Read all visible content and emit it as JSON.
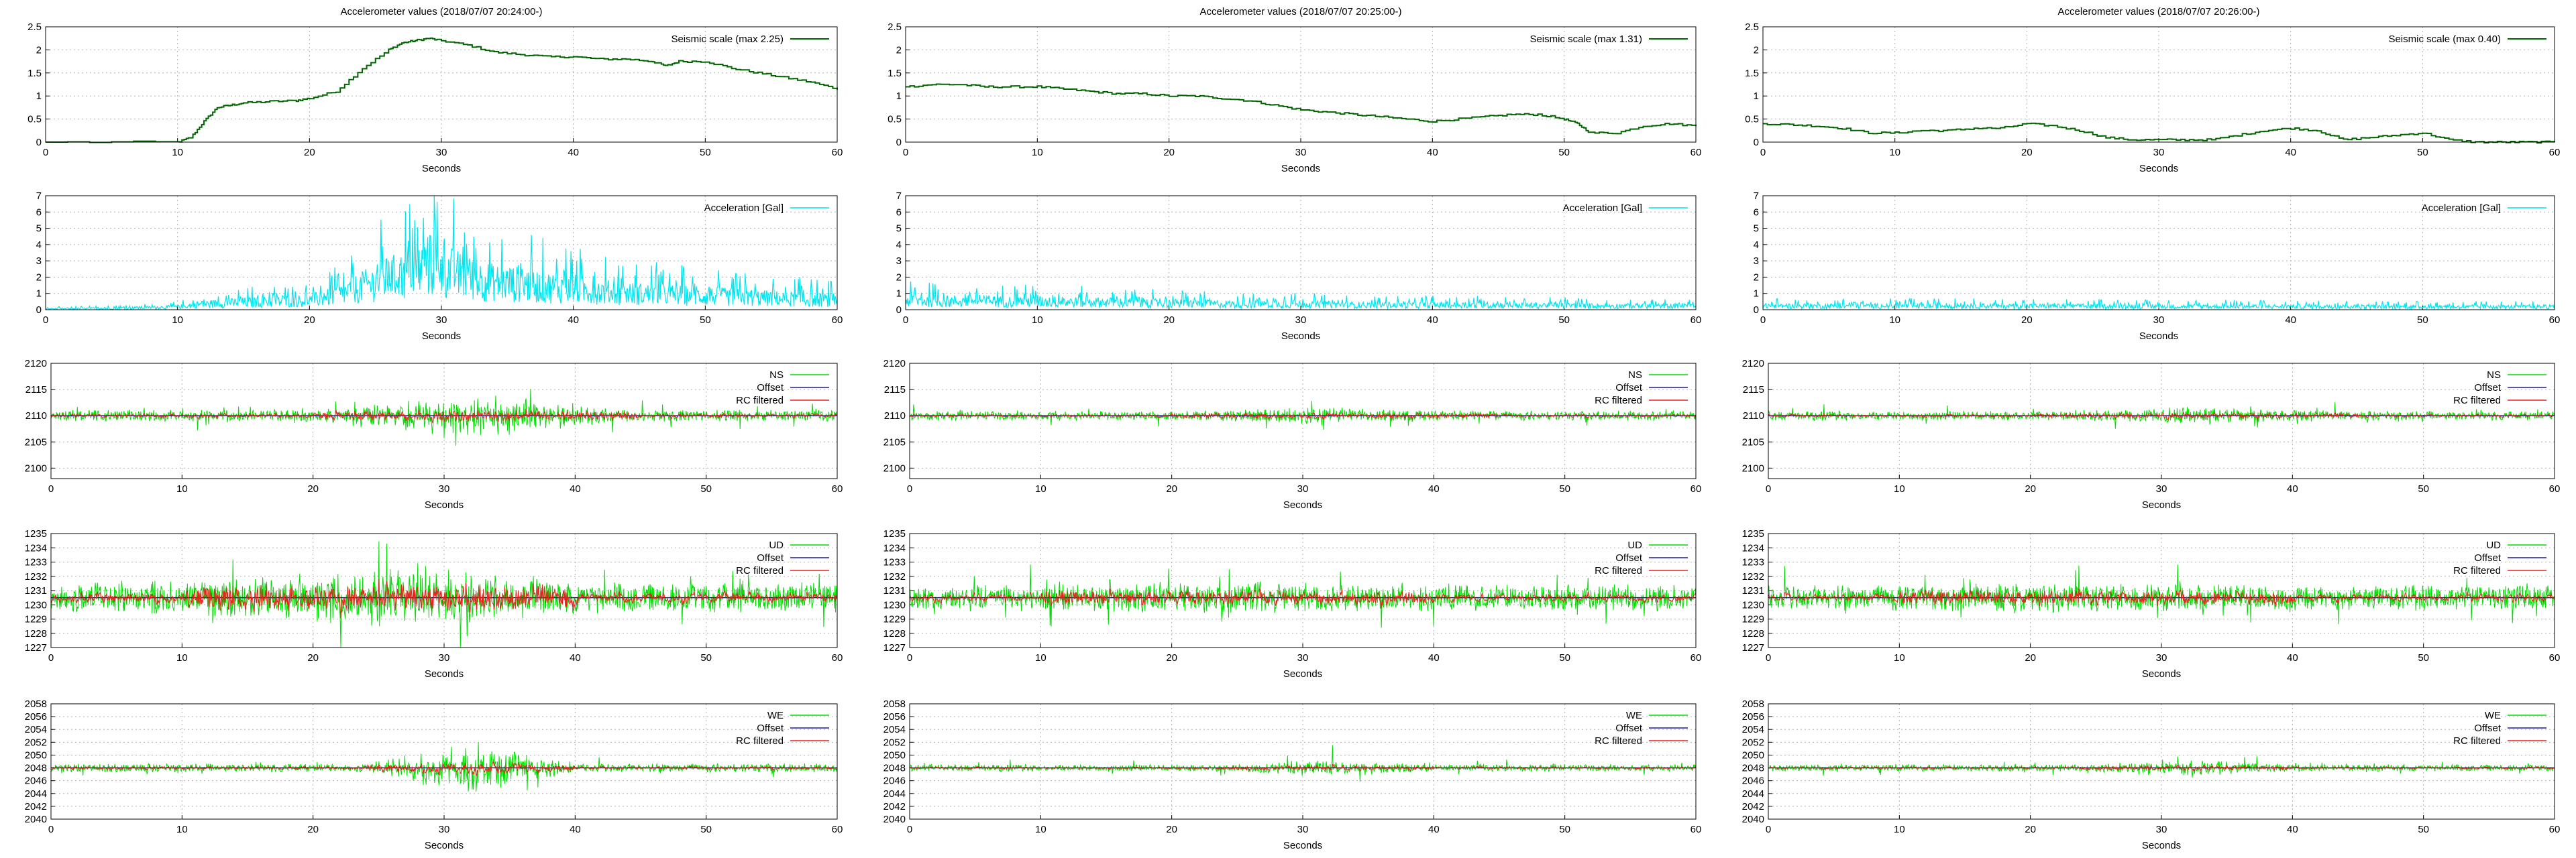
{
  "colors": {
    "seismic": "#006400",
    "accel": "#00e5ee",
    "raw": "#00dd00",
    "offset": "#1a1aa0",
    "rc": "#e82020",
    "grid": "#b0b0b0"
  },
  "columns": [
    {
      "title": "Accelerometer values (2018/07/07 20:24:00-)",
      "seismic_legend": "Seismic scale (max 2.25)"
    },
    {
      "title": "Accelerometer values (2018/07/07 20:25:00-)",
      "seismic_legend": "Seismic scale (max 1.31)"
    },
    {
      "title": "Accelerometer values (2018/07/07 20:26:00-)",
      "seismic_legend": "Seismic scale (max 0.40)"
    }
  ],
  "chart_data": [
    {
      "type": "line",
      "row": "seismic",
      "x_label": "Seconds",
      "xlim": [
        0,
        60
      ],
      "ylim": [
        0,
        2.5
      ],
      "x_ticks": [
        "0",
        "10",
        "20",
        "30",
        "40",
        "50",
        "60"
      ],
      "y_ticks": [
        "0",
        "0.5",
        "1",
        "1.5",
        "2",
        "2.5"
      ],
      "legend": [
        "Seismic scale (max 2.25)",
        "Seismic scale (max 1.31)",
        "Seismic scale (max 0.40)"
      ],
      "series": [
        {
          "x": [
            0,
            10,
            11,
            12,
            13,
            14,
            15,
            17,
            19,
            20,
            22,
            24,
            26,
            27,
            28,
            29,
            30,
            32,
            34,
            36,
            38,
            40,
            42,
            44,
            46,
            47,
            48,
            50,
            52,
            54,
            56,
            58,
            60
          ],
          "y": [
            0,
            0,
            0.1,
            0.45,
            0.75,
            0.8,
            0.85,
            0.88,
            0.9,
            0.95,
            1.1,
            1.6,
            2.0,
            2.15,
            2.2,
            2.25,
            2.2,
            2.1,
            1.95,
            1.9,
            1.85,
            1.85,
            1.8,
            1.8,
            1.75,
            1.65,
            1.75,
            1.75,
            1.6,
            1.5,
            1.4,
            1.3,
            1.15
          ]
        },
        {
          "x": [
            0,
            2,
            4,
            6,
            8,
            10,
            12,
            14,
            16,
            18,
            20,
            22,
            24,
            26,
            28,
            30,
            32,
            34,
            36,
            38,
            40,
            42,
            44,
            46,
            48,
            50,
            51,
            52,
            54,
            56,
            58,
            60
          ],
          "y": [
            1.2,
            1.25,
            1.25,
            1.2,
            1.2,
            1.2,
            1.15,
            1.1,
            1.05,
            1.05,
            1.0,
            1.0,
            0.95,
            0.9,
            0.8,
            0.7,
            0.65,
            0.6,
            0.55,
            0.5,
            0.45,
            0.5,
            0.55,
            0.6,
            0.6,
            0.5,
            0.4,
            0.2,
            0.2,
            0.35,
            0.4,
            0.35
          ]
        },
        {
          "x": [
            0,
            2,
            4,
            6,
            8,
            10,
            12,
            14,
            16,
            18,
            20,
            22,
            24,
            26,
            28,
            30,
            32,
            34,
            36,
            38,
            40,
            42,
            44,
            46,
            48,
            50,
            52,
            54,
            56,
            58,
            60
          ],
          "y": [
            0.4,
            0.38,
            0.35,
            0.3,
            0.2,
            0.2,
            0.25,
            0.25,
            0.3,
            0.3,
            0.4,
            0.35,
            0.25,
            0.1,
            0.05,
            0.05,
            0.05,
            0.05,
            0.15,
            0.25,
            0.3,
            0.25,
            0.05,
            0.1,
            0.15,
            0.2,
            0.05,
            0,
            0,
            0,
            0
          ]
        }
      ]
    },
    {
      "type": "line",
      "row": "acceleration",
      "x_label": "Seconds",
      "xlim": [
        0,
        60
      ],
      "ylim": [
        0,
        7
      ],
      "x_ticks": [
        "0",
        "10",
        "20",
        "30",
        "40",
        "50",
        "60"
      ],
      "y_ticks": [
        "0",
        "1",
        "2",
        "3",
        "4",
        "5",
        "6",
        "7"
      ],
      "legend": [
        "Acceleration [Gal]",
        "Acceleration [Gal]",
        "Acceleration [Gal]"
      ],
      "series": [
        {
          "x": [
            0,
            5,
            10,
            12,
            15,
            20,
            22,
            24,
            26,
            28,
            29,
            30,
            32,
            34,
            36,
            38,
            40,
            42,
            44,
            46,
            48,
            50,
            52,
            54,
            56,
            58,
            60
          ],
          "y": [
            0.1,
            0.15,
            0.3,
            0.6,
            0.8,
            1.0,
            1.5,
            2.5,
            3.5,
            4.0,
            5.0,
            4.5,
            3.5,
            3.0,
            2.8,
            2.5,
            2.3,
            2.0,
            1.8,
            1.7,
            1.6,
            1.5,
            1.4,
            1.3,
            1.2,
            1.1,
            1.0
          ]
        },
        {
          "x": [
            0,
            5,
            10,
            15,
            20,
            25,
            30,
            35,
            40,
            45,
            50,
            55,
            60
          ],
          "y": [
            1.0,
            0.9,
            0.9,
            0.8,
            0.7,
            0.6,
            0.6,
            0.5,
            0.5,
            0.5,
            0.45,
            0.4,
            0.4
          ]
        },
        {
          "x": [
            0,
            10,
            20,
            30,
            40,
            50,
            60
          ],
          "y": [
            0.4,
            0.4,
            0.4,
            0.35,
            0.35,
            0.3,
            0.3
          ]
        }
      ]
    },
    {
      "type": "line",
      "row": "NS",
      "x_label": "Seconds",
      "xlim": [
        0,
        60
      ],
      "ylim": [
        2098,
        2120
      ],
      "x_ticks": [
        "0",
        "10",
        "20",
        "30",
        "40",
        "50",
        "60"
      ],
      "y_ticks": [
        "2100",
        "2105",
        "2110",
        "2115",
        "2120"
      ],
      "legend": [
        "NS",
        "Offset",
        "RC filtered"
      ],
      "offset": 2110,
      "noise": [
        1.0,
        4.0,
        0.8
      ],
      "burst": [
        20,
        45
      ]
    },
    {
      "type": "line",
      "row": "UD",
      "x_label": "Seconds",
      "xlim": [
        0,
        60
      ],
      "ylim": [
        1227,
        1235
      ],
      "x_ticks": [
        "0",
        "10",
        "20",
        "30",
        "40",
        "50",
        "60"
      ],
      "y_ticks": [
        "1227",
        "1228",
        "1229",
        "1230",
        "1231",
        "1232",
        "1233",
        "1234",
        "1235"
      ],
      "legend": [
        "UD",
        "Offset",
        "RC filtered"
      ],
      "offset": 1230.5,
      "noise": [
        1.0,
        1.5,
        0.9
      ],
      "burst": [
        10,
        40
      ]
    },
    {
      "type": "line",
      "row": "WE",
      "x_label": "Seconds",
      "xlim": [
        0,
        60
      ],
      "ylim": [
        2040,
        2058
      ],
      "x_ticks": [
        "0",
        "10",
        "20",
        "30",
        "40",
        "50",
        "60"
      ],
      "y_ticks": [
        "2040",
        "2042",
        "2044",
        "2046",
        "2048",
        "2050",
        "2052",
        "2054",
        "2056",
        "2058"
      ],
      "legend": [
        "WE",
        "Offset",
        "RC filtered"
      ],
      "offset": 2048,
      "noise": [
        0.6,
        4.5,
        0.5
      ],
      "burst": [
        24,
        40
      ]
    }
  ]
}
